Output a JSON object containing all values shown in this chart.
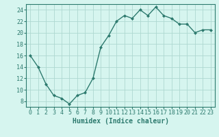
{
  "x": [
    0,
    1,
    2,
    3,
    4,
    5,
    6,
    7,
    8,
    9,
    10,
    11,
    12,
    13,
    14,
    15,
    16,
    17,
    18,
    19,
    20,
    21,
    22,
    23
  ],
  "y": [
    16,
    14,
    11,
    9,
    8.5,
    7.5,
    9,
    9.5,
    12,
    17.5,
    19.5,
    22,
    23,
    22.5,
    24,
    23,
    24.5,
    23,
    22.5,
    21.5,
    21.5,
    20,
    20.5,
    20.5
  ],
  "line_color": "#2d7a6e",
  "marker": "D",
  "marker_size": 2,
  "bg_color": "#d6f5ef",
  "grid_color": "#aed8d0",
  "xlabel": "Humidex (Indice chaleur)",
  "xlim": [
    -0.5,
    23.5
  ],
  "ylim": [
    7,
    25
  ],
  "yticks": [
    8,
    10,
    12,
    14,
    16,
    18,
    20,
    22,
    24
  ],
  "xticks": [
    0,
    1,
    2,
    3,
    4,
    5,
    6,
    7,
    8,
    9,
    10,
    11,
    12,
    13,
    14,
    15,
    16,
    17,
    18,
    19,
    20,
    21,
    22,
    23
  ],
  "tick_label_fontsize": 6,
  "xlabel_fontsize": 7,
  "linewidth": 1.0
}
